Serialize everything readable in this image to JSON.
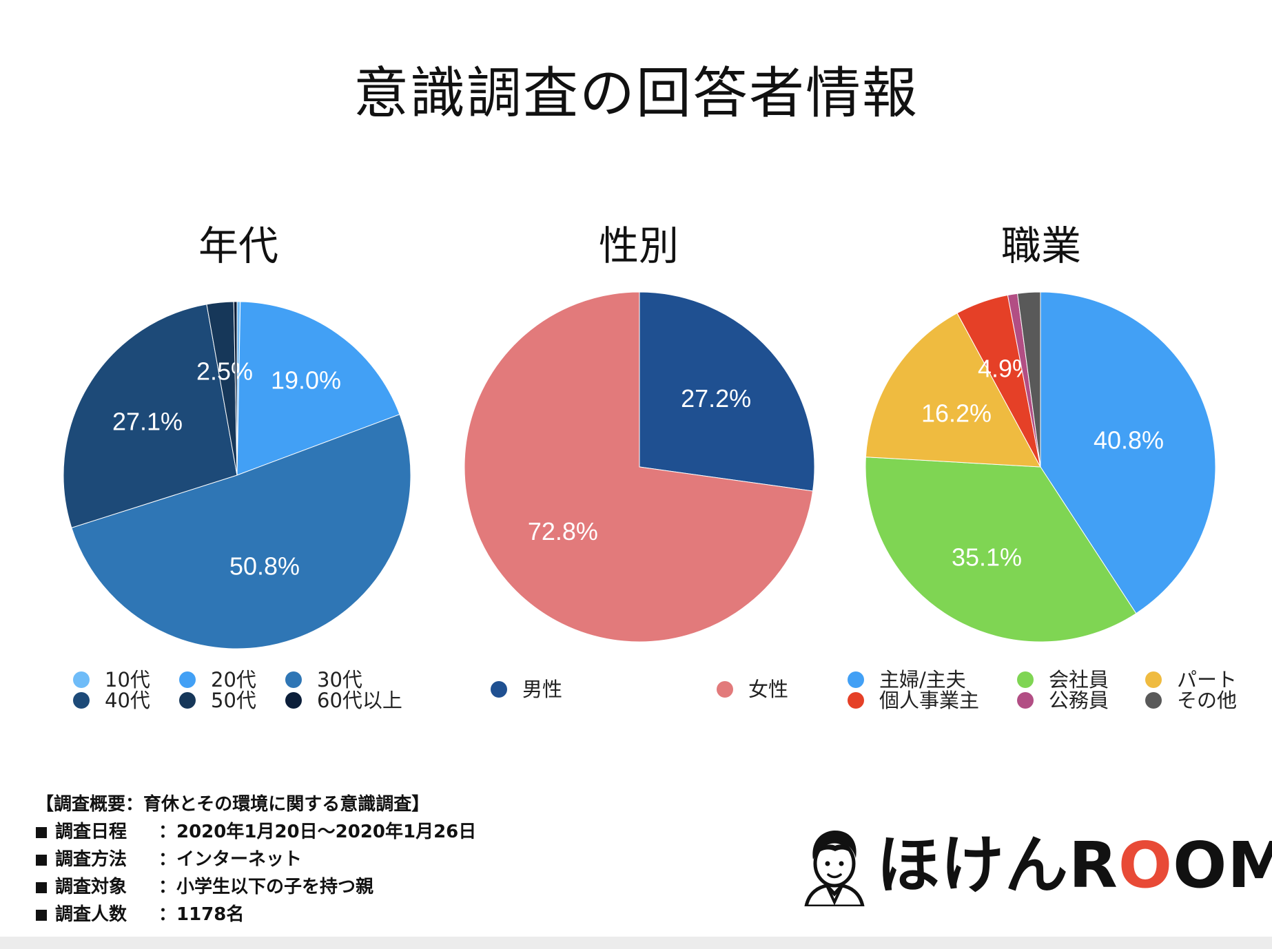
{
  "title": "意識調査の回答者情報",
  "chart_data": [
    {
      "type": "pie",
      "title": "年代",
      "categories": [
        "10代",
        "20代",
        "30代",
        "40代",
        "50代",
        "60代以上"
      ],
      "values": [
        0.3,
        19.0,
        50.8,
        27.1,
        2.5,
        0.3
      ],
      "labels": [
        "",
        "19.0%",
        "50.8%",
        "27.1%",
        "2.5%",
        ""
      ],
      "colors": [
        "#6fbcf8",
        "#42a0f5",
        "#2f76b5",
        "#1d4a78",
        "#163759",
        "#0b1e39"
      ],
      "legend": "bottom"
    },
    {
      "type": "pie",
      "title": "性別",
      "categories": [
        "男性",
        "女性"
      ],
      "values": [
        27.2,
        72.8
      ],
      "labels": [
        "27.2%",
        "72.8%"
      ],
      "colors": [
        "#1f5091",
        "#e27a7b"
      ],
      "legend": "bottom"
    },
    {
      "type": "pie",
      "title": "職業",
      "categories": [
        "主婦/主夫",
        "会社員",
        "パート",
        "個人事業主",
        "公務員",
        "その他"
      ],
      "values": [
        40.8,
        35.1,
        16.2,
        4.9,
        0.9,
        2.1
      ],
      "labels": [
        "40.8%",
        "35.1%",
        "16.2%",
        "4.9%",
        "",
        ""
      ],
      "colors": [
        "#42a0f5",
        "#7fd553",
        "#efbb40",
        "#e54027",
        "#b24e84",
        "#595959"
      ],
      "legend": "bottom"
    }
  ],
  "survey": {
    "heading": "【調査概要：育休とその環境に関する意識調査】",
    "rows": [
      {
        "key": "調査日程",
        "value": "：2020年1月20日〜2020年1月26日"
      },
      {
        "key": "調査方法",
        "value": "：インターネット"
      },
      {
        "key": "調査対象",
        "value": "：小学生以下の子を持つ親"
      },
      {
        "key": "調査人数",
        "value": "：1178名"
      }
    ]
  },
  "logo": {
    "brand_text_1": "ほけんR",
    "brand_text_red": "O",
    "brand_text_2": "OM",
    "mascot_icon": "person-avatar-icon",
    "accent_color": "#e84a36"
  }
}
